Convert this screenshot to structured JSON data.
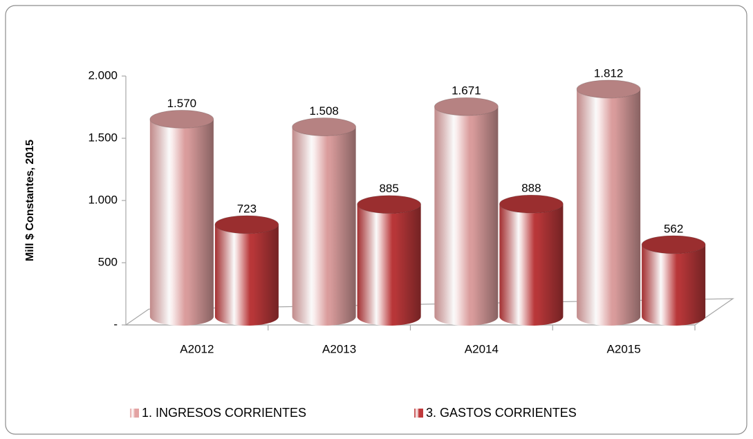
{
  "chart_data": {
    "type": "bar3d",
    "y_label": "Mill $ Constantes, 2015",
    "categories": [
      "A2012",
      "A2013",
      "A2014",
      "A2015"
    ],
    "series": [
      {
        "name": "1.  INGRESOS CORRIENTES",
        "color": "#e3a3a3",
        "values": [
          1570,
          1508,
          1671,
          1812
        ],
        "value_labels": [
          "1.570",
          "1.508",
          "1.671",
          "1.812"
        ]
      },
      {
        "name": "3.  GASTOS CORRIENTES",
        "color": "#c0393b",
        "values": [
          723,
          885,
          888,
          562
        ],
        "value_labels": [
          "723",
          "885",
          "888",
          "562"
        ]
      }
    ],
    "ylim": [
      0,
      2000
    ],
    "yticks": [
      {
        "value": 0,
        "label": "-"
      },
      500,
      {
        "value": 1000,
        "label": "1.000"
      },
      {
        "value": 1500,
        "label": "1.500"
      },
      {
        "value": 2000,
        "label": "2.000"
      }
    ],
    "legend": "bottom"
  }
}
